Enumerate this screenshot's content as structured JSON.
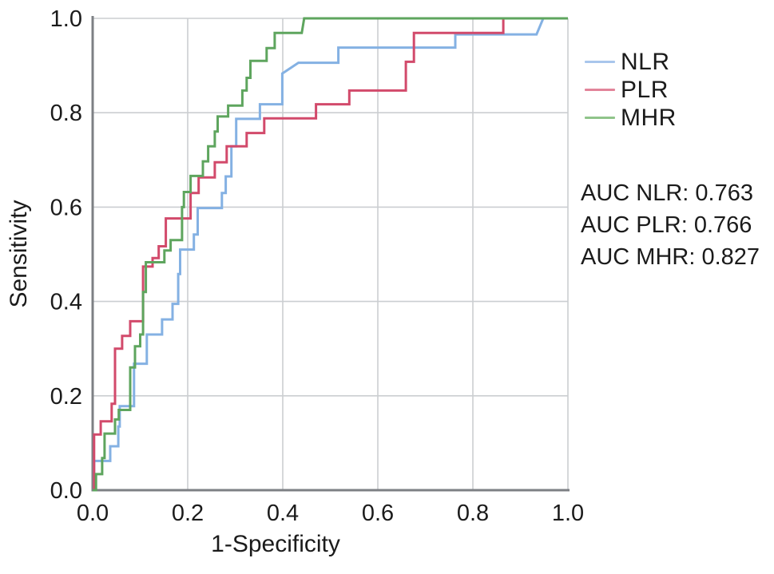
{
  "chart_data": {
    "type": "line",
    "subtype": "roc-step-curves",
    "xlabel": "1-Specificity",
    "ylabel": "Sensitivity",
    "xlim": [
      0,
      1
    ],
    "ylim": [
      0,
      1
    ],
    "xticks": [
      "0.0",
      "0.2",
      "0.4",
      "0.6",
      "0.8",
      "1.0"
    ],
    "yticks": [
      "0.0",
      "0.2",
      "0.4",
      "0.6",
      "0.8",
      "1.0"
    ],
    "grid": true,
    "legend_position": "outside-right-top",
    "grid_color": "#cbced1",
    "axis_color": "#7d8084",
    "series": [
      {
        "name": "NLR",
        "auc": 0.763,
        "color": "#84b1e3",
        "legend_color": "#a9c6ec",
        "points": [
          [
            0,
            0
          ],
          [
            0.003,
            0
          ],
          [
            0.003,
            0.062
          ],
          [
            0.037,
            0.062
          ],
          [
            0.037,
            0.093
          ],
          [
            0.054,
            0.093
          ],
          [
            0.054,
            0.135
          ],
          [
            0.057,
            0.135
          ],
          [
            0.057,
            0.178
          ],
          [
            0.087,
            0.178
          ],
          [
            0.087,
            0.268
          ],
          [
            0.114,
            0.268
          ],
          [
            0.114,
            0.33
          ],
          [
            0.146,
            0.33
          ],
          [
            0.146,
            0.362
          ],
          [
            0.168,
            0.362
          ],
          [
            0.168,
            0.395
          ],
          [
            0.18,
            0.395
          ],
          [
            0.18,
            0.458
          ],
          [
            0.184,
            0.458
          ],
          [
            0.184,
            0.51
          ],
          [
            0.213,
            0.51
          ],
          [
            0.213,
            0.542
          ],
          [
            0.221,
            0.542
          ],
          [
            0.221,
            0.598
          ],
          [
            0.272,
            0.598
          ],
          [
            0.272,
            0.63
          ],
          [
            0.28,
            0.63
          ],
          [
            0.28,
            0.665
          ],
          [
            0.292,
            0.665
          ],
          [
            0.292,
            0.729
          ],
          [
            0.302,
            0.729
          ],
          [
            0.302,
            0.787
          ],
          [
            0.352,
            0.787
          ],
          [
            0.352,
            0.818
          ],
          [
            0.399,
            0.818
          ],
          [
            0.399,
            0.883
          ],
          [
            0.433,
            0.906
          ],
          [
            0.517,
            0.906
          ],
          [
            0.517,
            0.938
          ],
          [
            0.763,
            0.938
          ],
          [
            0.763,
            0.966
          ],
          [
            0.934,
            0.966
          ],
          [
            0.948,
            1.0
          ],
          [
            1.0,
            1.0
          ]
        ]
      },
      {
        "name": "PLR",
        "auc": 0.766,
        "color": "#d24a6b",
        "legend_color": "#e2849a",
        "points": [
          [
            0,
            0
          ],
          [
            0.003,
            0
          ],
          [
            0.003,
            0.118
          ],
          [
            0.017,
            0.118
          ],
          [
            0.017,
            0.146
          ],
          [
            0.04,
            0.146
          ],
          [
            0.04,
            0.183
          ],
          [
            0.047,
            0.183
          ],
          [
            0.047,
            0.3
          ],
          [
            0.062,
            0.3
          ],
          [
            0.062,
            0.327
          ],
          [
            0.079,
            0.327
          ],
          [
            0.079,
            0.358
          ],
          [
            0.106,
            0.358
          ],
          [
            0.106,
            0.474
          ],
          [
            0.126,
            0.474
          ],
          [
            0.126,
            0.492
          ],
          [
            0.139,
            0.492
          ],
          [
            0.139,
            0.517
          ],
          [
            0.154,
            0.517
          ],
          [
            0.154,
            0.576
          ],
          [
            0.206,
            0.576
          ],
          [
            0.206,
            0.63
          ],
          [
            0.223,
            0.63
          ],
          [
            0.223,
            0.663
          ],
          [
            0.257,
            0.663
          ],
          [
            0.257,
            0.695
          ],
          [
            0.282,
            0.695
          ],
          [
            0.282,
            0.729
          ],
          [
            0.324,
            0.729
          ],
          [
            0.324,
            0.757
          ],
          [
            0.361,
            0.757
          ],
          [
            0.361,
            0.788
          ],
          [
            0.47,
            0.788
          ],
          [
            0.47,
            0.818
          ],
          [
            0.54,
            0.818
          ],
          [
            0.54,
            0.847
          ],
          [
            0.659,
            0.847
          ],
          [
            0.659,
            0.908
          ],
          [
            0.676,
            0.908
          ],
          [
            0.676,
            0.969
          ],
          [
            0.864,
            0.969
          ],
          [
            0.864,
            1.0
          ],
          [
            1.0,
            1.0
          ]
        ]
      },
      {
        "name": "MHR",
        "auc": 0.827,
        "color": "#5ea55e",
        "legend_color": "#8fc48a",
        "points": [
          [
            0,
            0
          ],
          [
            0.007,
            0
          ],
          [
            0.007,
            0.034
          ],
          [
            0.02,
            0.034
          ],
          [
            0.02,
            0.068
          ],
          [
            0.025,
            0.068
          ],
          [
            0.025,
            0.12
          ],
          [
            0.047,
            0.12
          ],
          [
            0.047,
            0.15
          ],
          [
            0.055,
            0.15
          ],
          [
            0.055,
            0.17
          ],
          [
            0.079,
            0.17
          ],
          [
            0.079,
            0.26
          ],
          [
            0.089,
            0.26
          ],
          [
            0.089,
            0.305
          ],
          [
            0.1,
            0.305
          ],
          [
            0.1,
            0.33
          ],
          [
            0.106,
            0.33
          ],
          [
            0.106,
            0.42
          ],
          [
            0.112,
            0.42
          ],
          [
            0.112,
            0.483
          ],
          [
            0.151,
            0.483
          ],
          [
            0.151,
            0.508
          ],
          [
            0.164,
            0.508
          ],
          [
            0.164,
            0.53
          ],
          [
            0.188,
            0.53
          ],
          [
            0.188,
            0.6
          ],
          [
            0.192,
            0.6
          ],
          [
            0.192,
            0.632
          ],
          [
            0.206,
            0.632
          ],
          [
            0.206,
            0.666
          ],
          [
            0.232,
            0.666
          ],
          [
            0.232,
            0.697
          ],
          [
            0.243,
            0.697
          ],
          [
            0.243,
            0.729
          ],
          [
            0.257,
            0.729
          ],
          [
            0.257,
            0.76
          ],
          [
            0.263,
            0.76
          ],
          [
            0.263,
            0.792
          ],
          [
            0.285,
            0.792
          ],
          [
            0.285,
            0.815
          ],
          [
            0.315,
            0.815
          ],
          [
            0.315,
            0.847
          ],
          [
            0.324,
            0.847
          ],
          [
            0.324,
            0.874
          ],
          [
            0.332,
            0.874
          ],
          [
            0.332,
            0.91
          ],
          [
            0.366,
            0.91
          ],
          [
            0.366,
            0.937
          ],
          [
            0.383,
            0.937
          ],
          [
            0.383,
            0.969
          ],
          [
            0.44,
            0.969
          ],
          [
            0.445,
            1.0
          ],
          [
            1.0,
            1.0
          ]
        ]
      }
    ],
    "auc_labels": [
      "AUC NLR: 0.763",
      "AUC PLR: 0.766",
      "AUC MHR: 0.827"
    ]
  },
  "legend": {
    "items": [
      {
        "label": "NLR"
      },
      {
        "label": "PLR"
      },
      {
        "label": "MHR"
      }
    ]
  }
}
